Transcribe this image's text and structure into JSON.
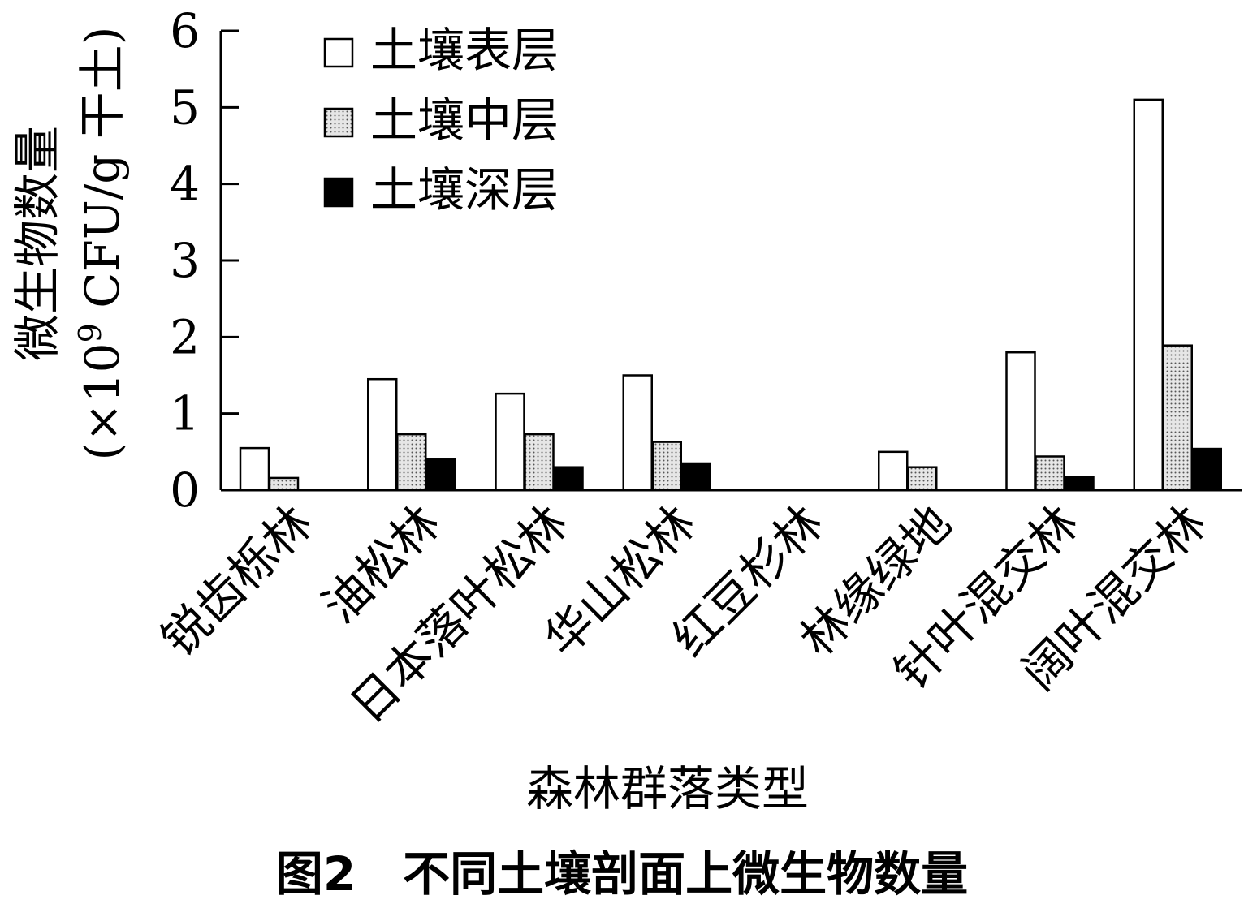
{
  "caption": "图2　不同土壤剖面上微生物数量",
  "chart_data": {
    "type": "bar",
    "title": "",
    "xlabel": "森林群落类型",
    "ylabel": "微生物数量",
    "ylabel_unit_prefix": "(×10",
    "ylabel_unit_exponent": "9",
    "ylabel_unit_suffix": " CFU/g 干土)",
    "ylim": [
      0,
      6
    ],
    "yticks": [
      "0",
      "1",
      "2",
      "3",
      "4",
      "5",
      "6"
    ],
    "categories": [
      "锐齿栎林",
      "油松林",
      "日本落叶松林",
      "华山松林",
      "红豆杉林",
      "林缘绿地",
      "针叶混交林",
      "阔叶混交林"
    ],
    "legend_position": "top-left",
    "grid": false,
    "series": [
      {
        "name": "土壤表层",
        "fill": "white",
        "values": [
          0.55,
          1.45,
          1.26,
          1.5,
          0,
          0.5,
          1.8,
          5.1
        ]
      },
      {
        "name": "土壤中层",
        "fill": "dotted",
        "values": [
          0.16,
          0.73,
          0.73,
          0.63,
          0,
          0.3,
          0.44,
          1.89
        ]
      },
      {
        "name": "土壤深层",
        "fill": "black",
        "values": [
          0,
          0.4,
          0.3,
          0.35,
          0,
          0,
          0.17,
          0.54
        ]
      }
    ],
    "colors": {
      "axis": "#000000",
      "bar_stroke": "#000000",
      "dotted_bg": "#e6e6e6",
      "dotted_dot": "#555555",
      "solid": "#000000"
    }
  }
}
